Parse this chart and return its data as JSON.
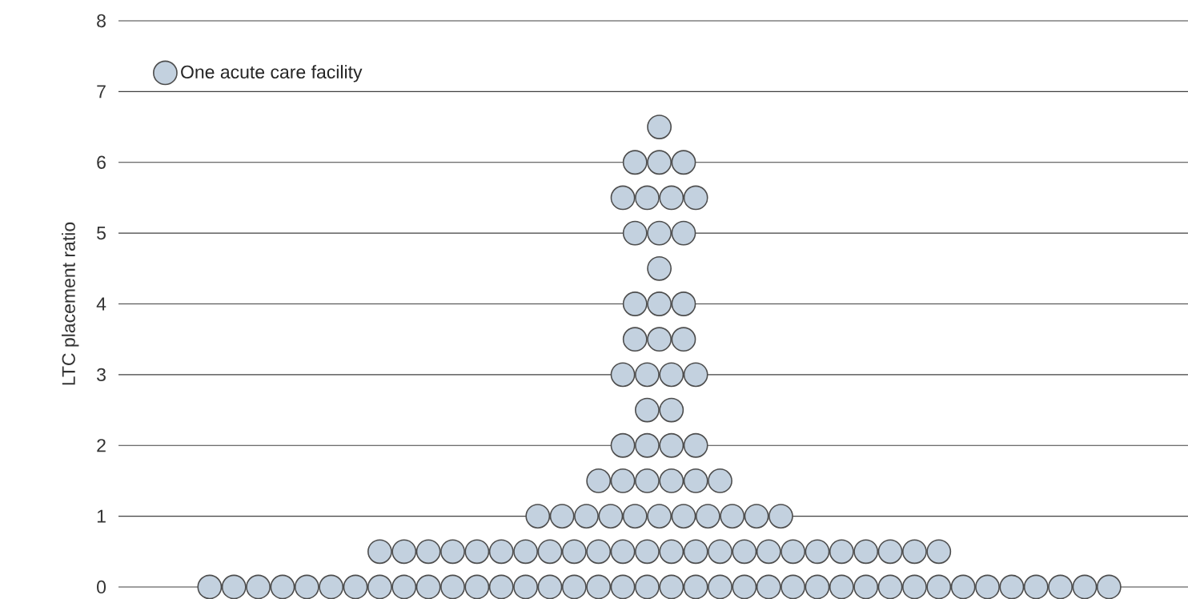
{
  "chart_data": {
    "type": "scatter",
    "ylabel": "LTC placement ratio",
    "ylim": [
      0,
      8
    ],
    "yticks": [
      0,
      1,
      2,
      3,
      4,
      5,
      6,
      7,
      8
    ],
    "tick_labels": "y",
    "grid": "y",
    "legend": "top left",
    "categories": [
      null,
      null,
      null,
      null,
      null,
      null,
      null,
      null,
      null,
      null,
      null,
      null,
      null,
      null,
      null,
      null,
      null,
      null,
      null,
      null,
      null,
      null,
      null,
      null,
      null,
      null,
      null,
      null,
      null,
      null,
      null,
      null,
      null,
      null,
      null,
      null,
      null,
      null,
      null,
      null,
      null,
      null,
      null,
      null,
      null,
      null,
      null,
      null,
      null,
      null,
      null,
      null,
      null,
      null,
      null,
      null,
      null,
      null,
      null,
      null,
      null,
      null,
      null,
      null,
      null,
      null,
      null,
      null,
      null,
      null,
      null,
      null,
      null,
      null,
      null,
      null,
      null,
      null,
      null,
      null,
      null,
      null,
      null,
      null,
      null,
      null,
      null,
      null
    ],
    "series": [
      {
        "name": "One acute care facility",
        "color": "#c3d1df",
        "values": [
          null,
          null,
          null,
          null,
          null,
          null,
          null,
          0,
          null,
          0,
          null,
          0,
          null,
          0,
          null,
          0,
          null,
          0,
          null,
          0,
          null,
          0,
          null,
          0,
          null,
          0,
          null,
          0,
          null,
          0,
          null,
          0,
          null,
          0,
          null,
          0,
          null,
          0,
          null,
          0,
          null,
          0,
          null,
          0,
          null,
          0,
          null,
          0,
          null,
          0,
          null,
          0,
          null,
          0,
          null,
          0,
          null,
          0,
          null,
          0,
          null,
          0,
          null,
          0,
          null,
          0,
          null,
          0,
          null,
          0,
          null,
          0,
          null,
          0,
          null,
          0,
          null,
          0,
          null,
          0,
          null,
          0,
          null,
          null,
          null,
          null,
          null,
          null
        ]
      },
      {
        "color": "#c3d1df",
        "values": [
          null,
          null,
          null,
          null,
          null,
          null,
          null,
          null,
          null,
          null,
          null,
          null,
          null,
          null,
          null,
          null,
          null,
          null,
          null,
          null,
          null,
          0.5,
          null,
          0.5,
          null,
          0.5,
          null,
          0.5,
          null,
          0.5,
          null,
          0.5,
          null,
          0.5,
          null,
          0.5,
          null,
          0.5,
          null,
          0.5,
          null,
          0.5,
          null,
          0.5,
          null,
          0.5,
          null,
          0.5,
          null,
          0.5,
          null,
          0.5,
          null,
          0.5,
          null,
          0.5,
          null,
          0.5,
          null,
          0.5,
          null,
          0.5,
          null,
          0.5,
          null,
          0.5,
          null,
          0.5,
          null,
          null,
          null,
          null,
          null,
          null,
          null,
          null,
          null,
          null,
          null,
          null,
          null,
          null,
          null,
          null,
          null,
          null,
          null,
          null
        ]
      },
      {
        "color": "#c3d1df",
        "values": [
          null,
          null,
          null,
          null,
          null,
          null,
          null,
          null,
          null,
          null,
          null,
          null,
          null,
          null,
          null,
          null,
          null,
          null,
          null,
          null,
          null,
          null,
          null,
          null,
          null,
          null,
          null,
          null,
          null,
          null,
          null,
          null,
          null,
          null,
          1,
          null,
          1,
          null,
          1,
          null,
          1,
          null,
          1,
          null,
          1,
          null,
          1,
          null,
          1,
          null,
          1,
          null,
          1,
          null,
          1,
          null,
          null,
          null,
          null,
          null,
          null,
          null,
          null,
          null,
          null,
          null,
          null,
          null,
          null,
          null,
          null,
          null,
          null,
          null,
          null,
          null,
          null,
          null,
          null,
          null,
          null,
          null,
          null,
          null,
          null,
          null,
          null,
          null
        ]
      },
      {
        "color": "#c3d1df",
        "values": [
          null,
          null,
          null,
          null,
          null,
          null,
          null,
          null,
          null,
          null,
          null,
          null,
          null,
          null,
          null,
          null,
          null,
          null,
          null,
          null,
          null,
          null,
          null,
          null,
          null,
          null,
          null,
          null,
          null,
          null,
          null,
          null,
          null,
          null,
          null,
          null,
          null,
          null,
          null,
          1.5,
          null,
          1.5,
          null,
          1.5,
          null,
          1.5,
          null,
          1.5,
          null,
          1.5,
          null,
          null,
          null,
          null,
          null,
          null,
          null,
          null,
          null,
          null,
          null,
          null,
          null,
          null,
          null,
          null,
          null,
          null,
          null,
          null,
          null,
          null,
          null,
          null,
          null,
          null,
          null,
          null,
          null,
          null,
          null,
          null,
          null,
          null,
          null,
          null,
          null,
          null
        ]
      },
      {
        "color": "#c3d1df",
        "values": [
          null,
          null,
          null,
          null,
          null,
          null,
          null,
          null,
          null,
          null,
          null,
          null,
          null,
          null,
          null,
          null,
          null,
          null,
          null,
          null,
          null,
          null,
          null,
          null,
          null,
          null,
          null,
          null,
          null,
          null,
          null,
          null,
          null,
          null,
          null,
          null,
          null,
          null,
          null,
          null,
          null,
          2,
          null,
          2,
          null,
          2,
          null,
          2,
          null,
          null,
          null,
          null,
          null,
          null,
          null,
          null,
          null,
          null,
          null,
          null,
          null,
          null,
          null,
          null,
          null,
          null,
          null,
          null,
          null,
          null,
          null,
          null,
          null,
          null,
          null,
          null,
          null,
          null,
          null,
          null,
          null,
          null,
          null,
          null,
          null,
          null,
          null,
          null
        ]
      },
      {
        "color": "#c3d1df",
        "values": [
          null,
          null,
          null,
          null,
          null,
          null,
          null,
          null,
          null,
          null,
          null,
          null,
          null,
          null,
          null,
          null,
          null,
          null,
          null,
          null,
          null,
          null,
          null,
          null,
          null,
          null,
          null,
          null,
          null,
          null,
          null,
          null,
          null,
          null,
          null,
          null,
          null,
          null,
          null,
          null,
          null,
          null,
          null,
          2.5,
          null,
          2.5,
          null,
          null,
          null,
          null,
          null,
          null,
          null,
          null,
          null,
          null,
          null,
          null,
          null,
          null,
          null,
          null,
          null,
          null,
          null,
          null,
          null,
          null,
          null,
          null,
          null,
          null,
          null,
          null,
          null,
          null,
          null,
          null,
          null,
          null,
          null,
          null,
          null,
          null,
          null,
          null,
          null,
          null
        ]
      },
      {
        "color": "#c3d1df",
        "values": [
          null,
          null,
          null,
          null,
          null,
          null,
          null,
          null,
          null,
          null,
          null,
          null,
          null,
          null,
          null,
          null,
          null,
          null,
          null,
          null,
          null,
          null,
          null,
          null,
          null,
          null,
          null,
          null,
          null,
          null,
          null,
          null,
          null,
          null,
          null,
          null,
          null,
          null,
          null,
          null,
          null,
          3,
          null,
          3,
          null,
          3,
          null,
          3,
          null,
          null,
          null,
          null,
          null,
          null,
          null,
          null,
          null,
          null,
          null,
          null,
          null,
          null,
          null,
          null,
          null,
          null,
          null,
          null,
          null,
          null,
          null,
          null,
          null,
          null,
          null,
          null,
          null,
          null,
          null,
          null,
          null,
          null,
          null,
          null,
          null,
          null,
          null,
          null
        ]
      },
      {
        "color": "#c3d1df",
        "values": [
          null,
          null,
          null,
          null,
          null,
          null,
          null,
          null,
          null,
          null,
          null,
          null,
          null,
          null,
          null,
          null,
          null,
          null,
          null,
          null,
          null,
          null,
          null,
          null,
          null,
          null,
          null,
          null,
          null,
          null,
          null,
          null,
          null,
          null,
          null,
          null,
          null,
          null,
          null,
          null,
          null,
          null,
          3.5,
          null,
          3.5,
          null,
          3.5,
          null,
          null,
          null,
          null,
          null,
          null,
          null,
          null,
          null,
          null,
          null,
          null,
          null,
          null,
          null,
          null,
          null,
          null,
          null,
          null,
          null,
          null,
          null,
          null,
          null,
          null,
          null,
          null,
          null,
          null,
          null,
          null,
          null,
          null,
          null,
          null,
          null,
          null,
          null,
          null,
          null
        ]
      },
      {
        "color": "#c3d1df",
        "values": [
          null,
          null,
          null,
          null,
          null,
          null,
          null,
          null,
          null,
          null,
          null,
          null,
          null,
          null,
          null,
          null,
          null,
          null,
          null,
          null,
          null,
          null,
          null,
          null,
          null,
          null,
          null,
          null,
          null,
          null,
          null,
          null,
          null,
          null,
          null,
          null,
          null,
          null,
          null,
          null,
          null,
          null,
          4,
          null,
          4,
          null,
          4,
          null,
          null,
          null,
          null,
          null,
          null,
          null,
          null,
          null,
          null,
          null,
          null,
          null,
          null,
          null,
          null,
          null,
          null,
          null,
          null,
          null,
          null,
          null,
          null,
          null,
          null,
          null,
          null,
          null,
          null,
          null,
          null,
          null,
          null,
          null,
          null,
          null,
          null,
          null,
          null,
          null
        ]
      },
      {
        "color": "#c3d1df",
        "values": [
          null,
          null,
          null,
          null,
          null,
          null,
          null,
          null,
          null,
          null,
          null,
          null,
          null,
          null,
          null,
          null,
          null,
          null,
          null,
          null,
          null,
          null,
          null,
          null,
          null,
          null,
          null,
          null,
          null,
          null,
          null,
          null,
          null,
          null,
          null,
          null,
          null,
          null,
          null,
          null,
          null,
          null,
          null,
          null,
          4.5,
          null,
          null,
          null,
          null,
          null,
          null,
          null,
          null,
          null,
          null,
          null,
          null,
          null,
          null,
          null,
          null,
          null,
          null,
          null,
          null,
          null,
          null,
          null,
          null,
          null,
          null,
          null,
          null,
          null,
          null,
          null,
          null,
          null,
          null,
          null,
          null,
          null,
          null,
          null,
          null,
          null,
          null,
          null
        ]
      },
      {
        "color": "#c3d1df",
        "values": [
          null,
          null,
          null,
          null,
          null,
          null,
          null,
          null,
          null,
          null,
          null,
          null,
          null,
          null,
          null,
          null,
          null,
          null,
          null,
          null,
          null,
          null,
          null,
          null,
          null,
          null,
          null,
          null,
          null,
          null,
          null,
          null,
          null,
          null,
          null,
          null,
          null,
          null,
          null,
          null,
          null,
          null,
          5,
          null,
          5,
          null,
          5,
          null,
          null,
          null,
          null,
          null,
          null,
          null,
          null,
          null,
          null,
          null,
          null,
          null,
          null,
          null,
          null,
          null,
          null,
          null,
          null,
          null,
          null,
          null,
          null,
          null,
          null,
          null,
          null,
          null,
          null,
          null,
          null,
          null,
          null,
          null,
          null,
          null,
          null,
          null,
          null,
          null
        ]
      },
      {
        "color": "#c3d1df",
        "values": [
          null,
          null,
          null,
          null,
          null,
          null,
          null,
          null,
          null,
          null,
          null,
          null,
          null,
          null,
          null,
          null,
          null,
          null,
          null,
          null,
          null,
          null,
          null,
          null,
          null,
          null,
          null,
          null,
          null,
          null,
          null,
          null,
          null,
          null,
          null,
          null,
          null,
          null,
          null,
          null,
          null,
          5.5,
          null,
          5.5,
          null,
          5.5,
          null,
          5.5,
          null,
          null,
          null,
          null,
          null,
          null,
          null,
          null,
          null,
          null,
          null,
          null,
          null,
          null,
          null,
          null,
          null,
          null,
          null,
          null,
          null,
          null,
          null,
          null,
          null,
          null,
          null,
          null,
          null,
          null,
          null,
          null,
          null,
          null,
          null,
          null,
          null,
          null,
          null,
          null
        ]
      },
      {
        "color": "#c3d1df",
        "values": [
          null,
          null,
          null,
          null,
          null,
          null,
          null,
          null,
          null,
          null,
          null,
          null,
          null,
          null,
          null,
          null,
          null,
          null,
          null,
          null,
          null,
          null,
          null,
          null,
          null,
          null,
          null,
          null,
          null,
          null,
          null,
          null,
          null,
          null,
          null,
          null,
          null,
          null,
          null,
          null,
          null,
          null,
          6,
          null,
          6,
          null,
          6,
          null,
          null,
          null,
          null,
          null,
          null,
          null,
          null,
          null,
          null,
          null,
          null,
          null,
          null,
          null,
          null,
          null,
          null,
          null,
          null,
          null,
          null,
          null,
          null,
          null,
          null,
          null,
          null,
          null,
          null,
          null,
          null,
          null,
          null,
          null,
          null,
          null,
          null,
          null,
          null,
          null
        ]
      },
      {
        "color": "#c3d1df",
        "values": [
          null,
          null,
          null,
          null,
          null,
          null,
          null,
          null,
          null,
          null,
          null,
          null,
          null,
          null,
          null,
          null,
          null,
          null,
          null,
          null,
          null,
          null,
          null,
          null,
          null,
          null,
          null,
          null,
          null,
          null,
          null,
          null,
          null,
          null,
          null,
          null,
          null,
          null,
          null,
          null,
          null,
          null,
          null,
          null,
          6.5,
          null,
          null,
          null,
          null,
          null,
          null,
          null,
          null,
          null,
          null,
          null,
          null,
          null,
          null,
          null,
          null,
          null,
          null,
          null,
          null,
          null,
          null,
          null,
          null,
          null,
          null,
          null,
          null,
          null,
          null,
          null,
          null,
          null,
          null,
          null,
          null,
          null,
          null,
          null,
          null,
          null,
          null,
          null
        ]
      }
    ]
  }
}
